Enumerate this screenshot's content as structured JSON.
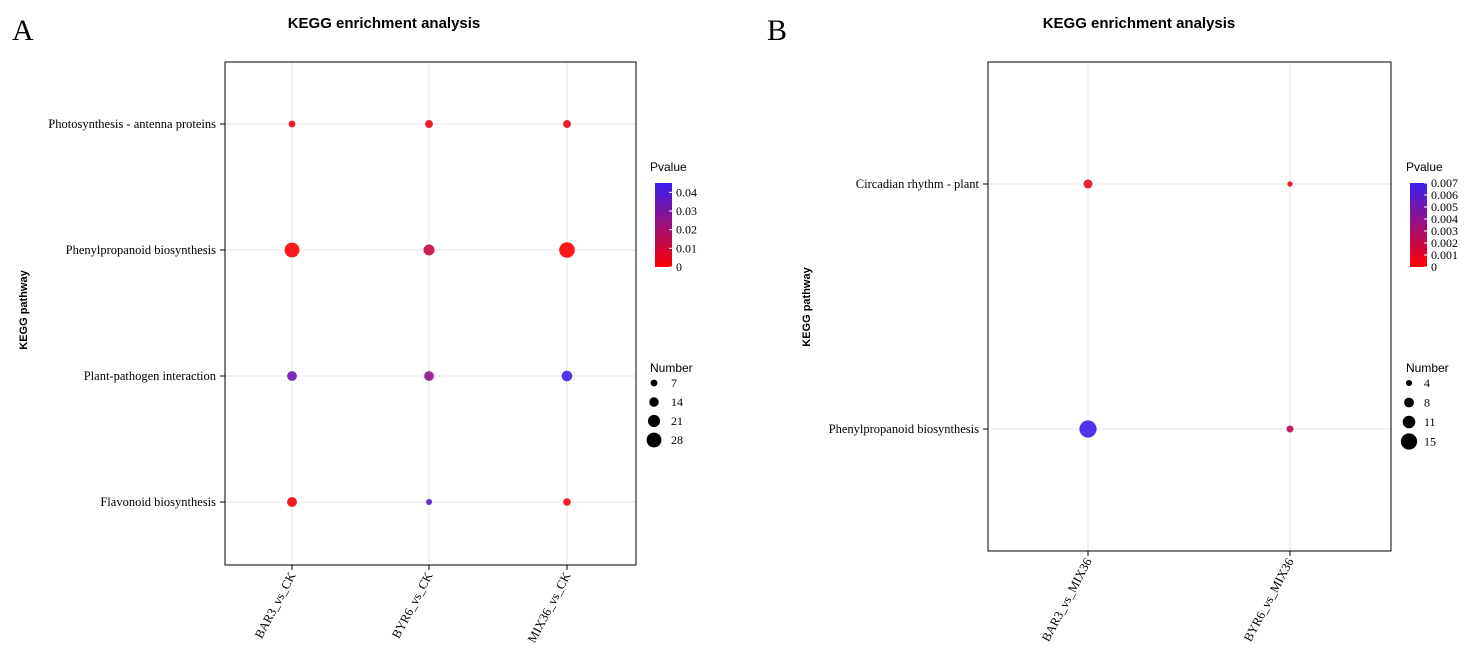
{
  "panels": [
    {
      "letter": "A",
      "title": "KEGG enrichment analysis",
      "ylabel": "KEGG pathway",
      "color_legend_title": "Pvalue",
      "size_legend_title": "Number",
      "color_ticks": [
        "0.04",
        "0.03",
        "0.02",
        "0.01",
        "0"
      ],
      "size_ticks": [
        "7",
        "14",
        "21",
        "28"
      ]
    },
    {
      "letter": "B",
      "title": "KEGG enrichment analysis",
      "ylabel": "KEGG pathway",
      "color_legend_title": "Pvalue",
      "size_legend_title": "Number",
      "color_ticks": [
        "0.007",
        "0.006",
        "0.005",
        "0.004",
        "0.003",
        "0.002",
        "0.001",
        "0"
      ],
      "size_ticks": [
        "4",
        "8",
        "11",
        "15"
      ]
    }
  ],
  "chart_data": [
    {
      "type": "scatter",
      "subtype": "bubble",
      "title": "KEGG enrichment analysis",
      "xlabel": "",
      "ylabel": "KEGG pathway",
      "categories_x": [
        "BAR3_vs_CK",
        "BYR6_vs_CK",
        "MIX36_vs_CK"
      ],
      "categories_y": [
        "Photosynthesis - antenna proteins",
        "Phenylpropanoid biosynthesis",
        "Plant-pathogen interaction",
        "Flavonoid biosynthesis"
      ],
      "color_scale": {
        "name": "Pvalue",
        "min": 0,
        "max": 0.045,
        "low": "#ff0000",
        "high": "#3a1ff2"
      },
      "size_scale": {
        "name": "Number",
        "breaks": [
          7,
          14,
          21,
          28
        ],
        "min": 5,
        "max": 30
      },
      "points": [
        {
          "x": "BAR3_vs_CK",
          "y": "Photosynthesis - antenna proteins",
          "number": 7,
          "pvalue": 0.002
        },
        {
          "x": "BYR6_vs_CK",
          "y": "Photosynthesis - antenna proteins",
          "number": 10,
          "pvalue": 0.003
        },
        {
          "x": "MIX36_vs_CK",
          "y": "Photosynthesis - antenna proteins",
          "number": 10,
          "pvalue": 0.003
        },
        {
          "x": "BAR3_vs_CK",
          "y": "Phenylpropanoid biosynthesis",
          "number": 28,
          "pvalue": 0.001
        },
        {
          "x": "BYR6_vs_CK",
          "y": "Phenylpropanoid biosynthesis",
          "number": 18,
          "pvalue": 0.012
        },
        {
          "x": "MIX36_vs_CK",
          "y": "Phenylpropanoid biosynthesis",
          "number": 30,
          "pvalue": 0.0005
        },
        {
          "x": "BAR3_vs_CK",
          "y": "Plant-pathogen interaction",
          "number": 15,
          "pvalue": 0.033
        },
        {
          "x": "BYR6_vs_CK",
          "y": "Plant-pathogen interaction",
          "number": 15,
          "pvalue": 0.025
        },
        {
          "x": "MIX36_vs_CK",
          "y": "Plant-pathogen interaction",
          "number": 17,
          "pvalue": 0.043
        },
        {
          "x": "BAR3_vs_CK",
          "y": "Flavonoid biosynthesis",
          "number": 15,
          "pvalue": 0.002
        },
        {
          "x": "BYR6_vs_CK",
          "y": "Flavonoid biosynthesis",
          "number": 5,
          "pvalue": 0.038
        },
        {
          "x": "MIX36_vs_CK",
          "y": "Flavonoid biosynthesis",
          "number": 9,
          "pvalue": 0.003
        }
      ]
    },
    {
      "type": "scatter",
      "subtype": "bubble",
      "title": "KEGG enrichment analysis",
      "xlabel": "",
      "ylabel": "KEGG pathway",
      "categories_x": [
        "BAR3_vs_MIX36",
        "BYR6_vs_MIX36"
      ],
      "categories_y": [
        "Circadian rhythm - plant",
        "Phenylpropanoid biosynthesis"
      ],
      "color_scale": {
        "name": "Pvalue",
        "min": 0,
        "max": 0.007,
        "low": "#ff0000",
        "high": "#3a1ff2"
      },
      "size_scale": {
        "name": "Number",
        "breaks": [
          4,
          8,
          11,
          15
        ],
        "min": 3,
        "max": 16
      },
      "points": [
        {
          "x": "BAR3_vs_MIX36",
          "y": "Circadian rhythm - plant",
          "number": 7,
          "pvalue": 0.0008
        },
        {
          "x": "BYR6_vs_MIX36",
          "y": "Circadian rhythm - plant",
          "number": 3,
          "pvalue": 0.0006
        },
        {
          "x": "BAR3_vs_MIX36",
          "y": "Phenylpropanoid biosynthesis",
          "number": 16,
          "pvalue": 0.0068
        },
        {
          "x": "BYR6_vs_MIX36",
          "y": "Phenylpropanoid biosynthesis",
          "number": 5,
          "pvalue": 0.0025
        }
      ]
    }
  ]
}
